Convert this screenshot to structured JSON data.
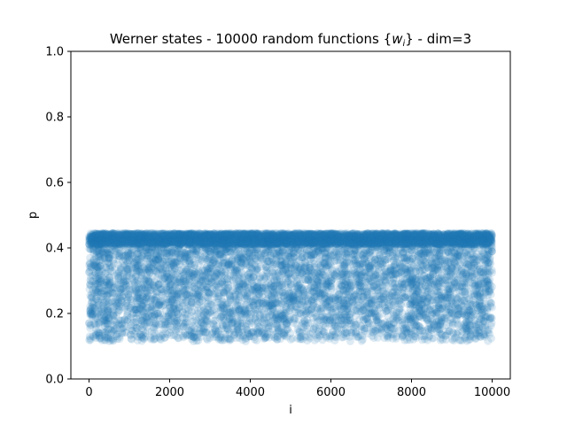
{
  "chart_data": {
    "type": "scatter",
    "title_prefix": "Werner states - 10000 random functions {",
    "title_var": "w",
    "title_sub": "i",
    "title_suffix": "} - dim=3",
    "xlabel": "i",
    "ylabel": "p",
    "xlim": [
      -450,
      10450
    ],
    "ylim": [
      0.0,
      1.0
    ],
    "xticks": [
      0,
      2000,
      4000,
      6000,
      8000,
      10000
    ],
    "yticks": [
      0.0,
      0.2,
      0.4,
      0.6,
      0.8,
      1.0
    ],
    "xtick_labels": [
      "0",
      "2000",
      "4000",
      "6000",
      "8000",
      "10000"
    ],
    "ytick_labels": [
      "0.0",
      "0.2",
      "0.4",
      "0.6",
      "0.8",
      "1.0"
    ],
    "grid": false,
    "series": [
      {
        "color": "#1f77b4",
        "alpha": 0.15,
        "n_points": 10000,
        "x_range": [
          0,
          10000
        ],
        "y_min": 0.115,
        "y_max": 0.445,
        "dense_band": [
          0.41,
          0.445
        ]
      }
    ]
  }
}
